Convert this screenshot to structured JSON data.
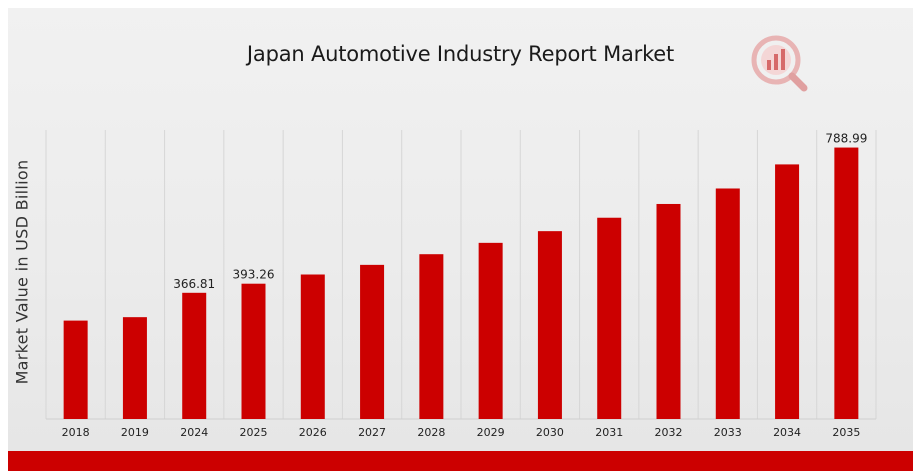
{
  "chart_data": {
    "type": "bar",
    "title": "Japan Automotive Industry Report Market",
    "xlabel": "",
    "ylabel": "Market Value in USD Billion",
    "categories": [
      "2018",
      "2019",
      "2024",
      "2025",
      "2026",
      "2027",
      "2028",
      "2029",
      "2030",
      "2031",
      "2032",
      "2033",
      "2034",
      "2035"
    ],
    "values": [
      286,
      296,
      366.81,
      393.26,
      420,
      448,
      479,
      512,
      546,
      585,
      625,
      670,
      740,
      788.99
    ],
    "value_labels": [
      "",
      "",
      "366.81",
      "393.26",
      "",
      "",
      "",
      "",
      "",
      "",
      "",
      "",
      "",
      "788.99"
    ],
    "ylim": [
      0,
      840
    ],
    "grid": "vertical",
    "legend": "none",
    "bar_color": "#cc0000"
  },
  "logo": {
    "icon": "analytics-magnifier-logo",
    "color": "#cc0000"
  }
}
